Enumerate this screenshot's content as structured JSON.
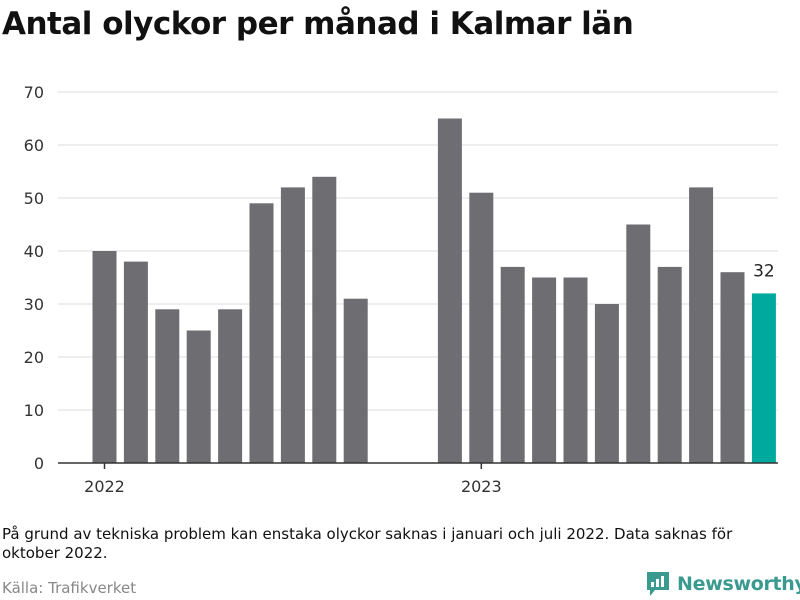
{
  "title": "Antal olyckor per månad i Kalmar län",
  "note": "På grund av tekniska problem kan enstaka olyckor saknas i januari och juli 2022. Data saknas för oktober 2022.",
  "source": "Källa: Trafikverket",
  "brand": {
    "name": "Newsworthy",
    "color": "#3a9a8f"
  },
  "chart_data": {
    "type": "bar",
    "months": [
      "2022-01",
      "2022-02",
      "2022-03",
      "2022-04",
      "2022-05",
      "2022-06",
      "2022-07",
      "2022-08",
      "2022-09",
      "2022-10",
      "2022-11",
      "2022-12",
      "2023-01",
      "2023-02",
      "2023-03",
      "2023-04",
      "2023-05",
      "2023-06",
      "2023-07",
      "2023-08",
      "2023-09",
      "2023-10"
    ],
    "values": [
      40,
      38,
      29,
      25,
      29,
      49,
      52,
      54,
      31,
      null,
      null,
      65,
      51,
      37,
      35,
      35,
      30,
      45,
      37,
      52,
      36,
      32
    ],
    "ylim": [
      0,
      70
    ],
    "yticks": [
      0,
      10,
      20,
      30,
      40,
      50,
      60,
      70
    ],
    "xticks": [
      {
        "month": "2022-01",
        "label": "2022"
      },
      {
        "month": "2023-01",
        "label": "2023"
      }
    ],
    "grid": true,
    "colors": {
      "bar": "#6e6d72",
      "highlight": "#00a99d"
    },
    "highlight_month": "2023-10",
    "data_labels": [
      {
        "month": "2023-10",
        "label": "32"
      }
    ]
  }
}
